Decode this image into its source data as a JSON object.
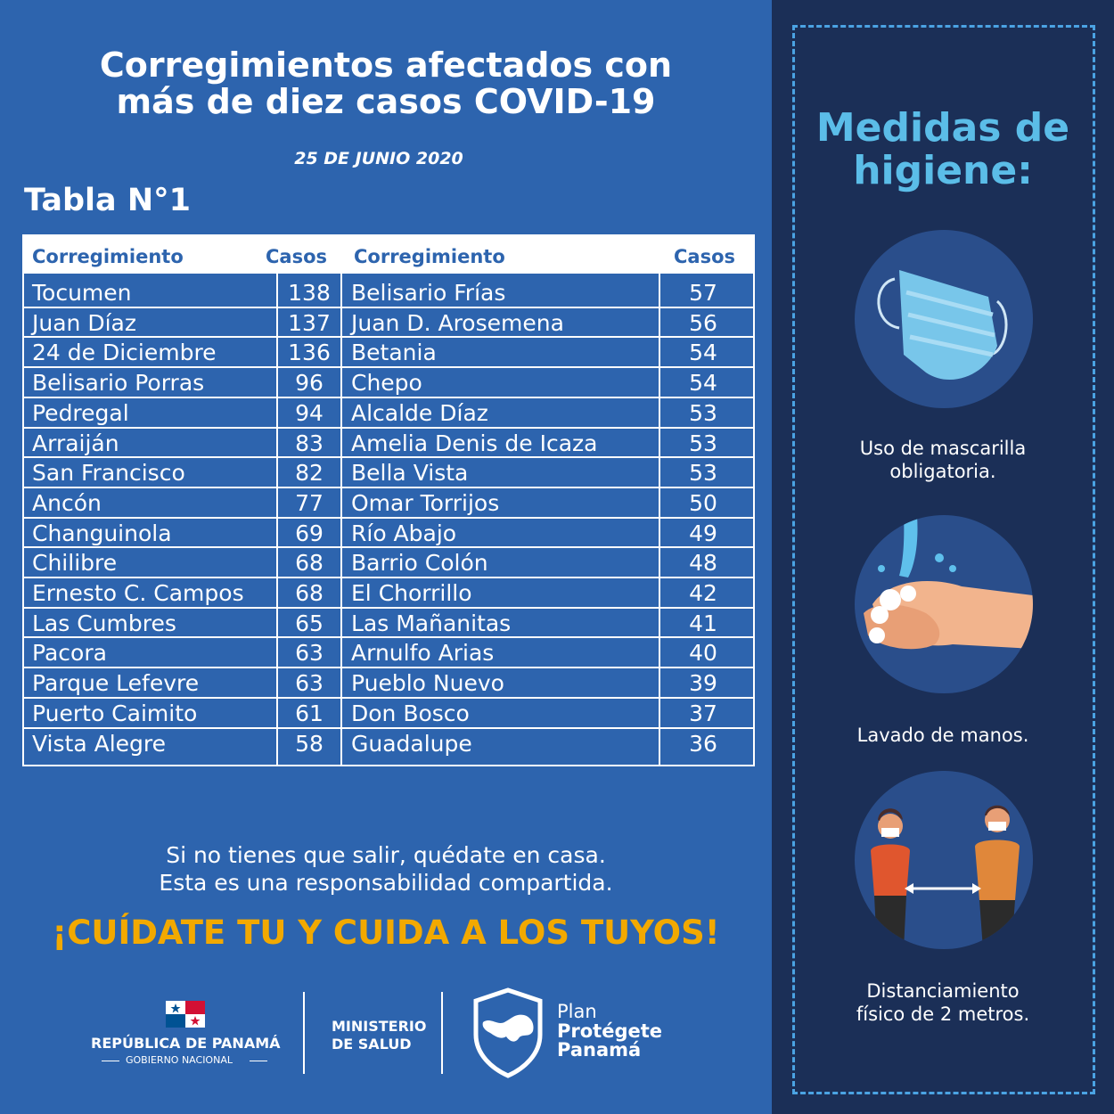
{
  "header": {
    "title_line1": "Corregimientos afectados con",
    "title_line2": "más de diez casos COVID-19",
    "date": "25 DE JUNIO 2020",
    "table_label": "Tabla N°1"
  },
  "table": {
    "headers": [
      "Corregimiento",
      "Casos",
      "Corregimiento",
      "Casos"
    ],
    "left_rows": [
      {
        "name": "Tocumen",
        "cases": "138"
      },
      {
        "name": "Juan Díaz",
        "cases": "137"
      },
      {
        "name": "24 de Diciembre",
        "cases": "136"
      },
      {
        "name": "Belisario Porras",
        "cases": "96"
      },
      {
        "name": "Pedregal",
        "cases": "94"
      },
      {
        "name": "Arraiján",
        "cases": "83"
      },
      {
        "name": "San Francisco",
        "cases": "82"
      },
      {
        "name": "Ancón",
        "cases": "77"
      },
      {
        "name": "Changuinola",
        "cases": "69"
      },
      {
        "name": "Chilibre",
        "cases": "68"
      },
      {
        "name": "Ernesto C. Campos",
        "cases": "68"
      },
      {
        "name": "Las Cumbres",
        "cases": "65"
      },
      {
        "name": "Pacora",
        "cases": "63"
      },
      {
        "name": "Parque Lefevre",
        "cases": "63"
      },
      {
        "name": "Puerto Caimito",
        "cases": "61"
      },
      {
        "name": "Vista Alegre",
        "cases": "58"
      }
    ],
    "right_rows": [
      {
        "name": "Belisario Frías",
        "cases": "57"
      },
      {
        "name": "Juan D. Arosemena",
        "cases": "56"
      },
      {
        "name": "Betania",
        "cases": "54"
      },
      {
        "name": "Chepo",
        "cases": "54"
      },
      {
        "name": "Alcalde Díaz",
        "cases": "53"
      },
      {
        "name": "Amelia Denis de Icaza",
        "cases": "53"
      },
      {
        "name": "Bella Vista",
        "cases": "53"
      },
      {
        "name": "Omar Torrijos",
        "cases": "50"
      },
      {
        "name": "Río Abajo",
        "cases": "49"
      },
      {
        "name": "Barrio Colón",
        "cases": "48"
      },
      {
        "name": "El Chorrillo",
        "cases": "42"
      },
      {
        "name": "Las Mañanitas",
        "cases": "41"
      },
      {
        "name": "Arnulfo Arias",
        "cases": "40"
      },
      {
        "name": "Pueblo Nuevo",
        "cases": "39"
      },
      {
        "name": "Don Bosco",
        "cases": "37"
      },
      {
        "name": "Guadalupe",
        "cases": "36"
      }
    ]
  },
  "message": {
    "line1": "Si no tienes que salir, quédate en casa.",
    "line2": "Esta es una responsabilidad compartida.",
    "slogan": "¡CUÍDATE TU Y CUIDA A LOS TUYOS!"
  },
  "logos": {
    "republic": "REPÚBLICA DE PANAMÁ",
    "government": "GOBIERNO NACIONAL",
    "ministry_line1": "MINISTERIO",
    "ministry_line2": "DE SALUD",
    "plan_line1": "Plan",
    "plan_line2": "Protégete",
    "plan_line3": "Panamá"
  },
  "hygiene": {
    "title_line1": "Medidas de",
    "title_line2": "higiene:",
    "items": [
      {
        "icon": "face-mask-icon",
        "caption_line1": "Uso de mascarilla",
        "caption_line2": "obligatoria."
      },
      {
        "icon": "hand-washing-icon",
        "caption_line1": "Lavado de manos.",
        "caption_line2": ""
      },
      {
        "icon": "social-distancing-icon",
        "caption_line1": "Distanciamiento",
        "caption_line2": "físico de 2 metros."
      }
    ]
  },
  "colors": {
    "background": "#2d64ae",
    "sidebar": "#1b2f57",
    "accent_orange": "#f2a900",
    "accent_light_blue": "#5bbde8"
  }
}
